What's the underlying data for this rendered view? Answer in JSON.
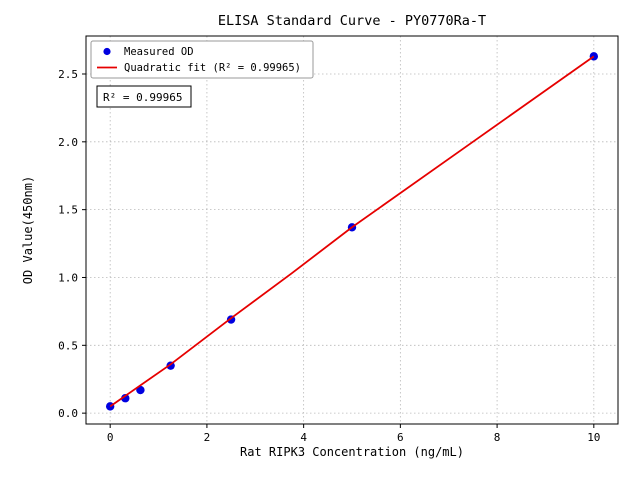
{
  "chart_data": {
    "type": "scatter",
    "title": "ELISA Standard Curve - PY0770Ra-T",
    "xlabel": "Rat RIPK3 Concentration (ng/mL)",
    "ylabel": "OD Value(450nm)",
    "xlim": [
      -0.5,
      10.5
    ],
    "ylim": [
      -0.08,
      2.78
    ],
    "xticks": [
      0,
      2,
      4,
      6,
      8,
      10
    ],
    "yticks": [
      0.0,
      0.5,
      1.0,
      1.5,
      2.0,
      2.5
    ],
    "grid": true,
    "legend_position": "upper-left",
    "annotation": "R² = 0.99965",
    "colors": {
      "scatter": "#0000e0",
      "fit_line": "#e60000"
    },
    "series": [
      {
        "name": "Measured OD",
        "kind": "scatter",
        "x": [
          0,
          0.3125,
          0.625,
          1.25,
          2.5,
          5,
          10
        ],
        "y": [
          0.05,
          0.11,
          0.17,
          0.35,
          0.69,
          1.37,
          2.63
        ]
      },
      {
        "name": "Quadratic fit (R² = 0.99965)",
        "kind": "line",
        "x": [
          0,
          1.25,
          2.5,
          3.75,
          5,
          7.5,
          10
        ],
        "y": [
          0.05,
          0.36,
          0.7,
          1.03,
          1.37,
          2.0,
          2.63
        ]
      }
    ]
  }
}
